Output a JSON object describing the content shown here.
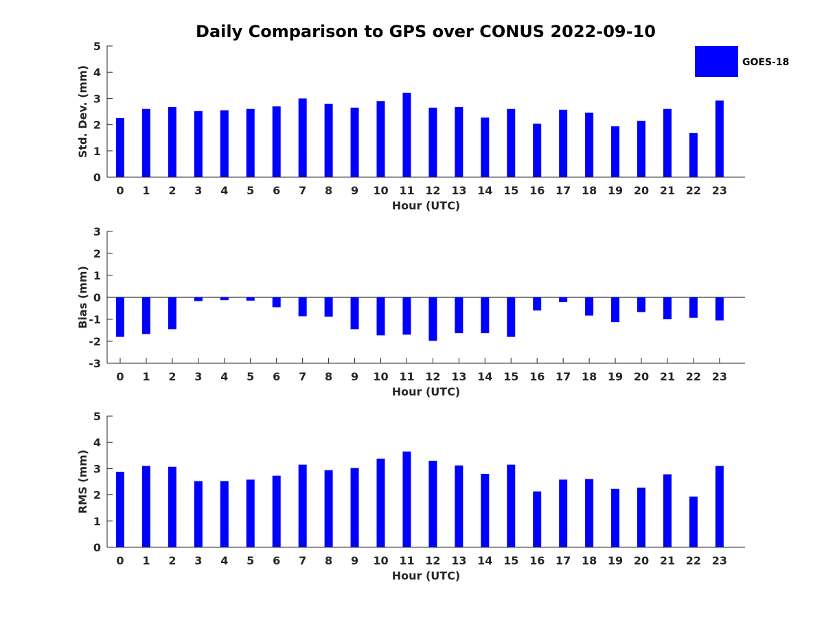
{
  "figure_title": "Daily Comparison to GPS over CONUS 2022-09-10",
  "legend": {
    "label": "GOES-18"
  },
  "colors": {
    "bar": "#0000ff",
    "axis": "#262626"
  },
  "chart_data": [
    {
      "type": "bar",
      "title": "",
      "xlabel": "Hour (UTC)",
      "ylabel": "Std. Dev. (mm)",
      "ylim": [
        0,
        5
      ],
      "yticks": [
        0,
        1,
        2,
        3,
        4,
        5
      ],
      "categories": [
        "0",
        "1",
        "2",
        "3",
        "4",
        "5",
        "6",
        "7",
        "8",
        "9",
        "10",
        "11",
        "12",
        "13",
        "14",
        "15",
        "16",
        "17",
        "18",
        "19",
        "20",
        "21",
        "22",
        "23"
      ],
      "series": [
        {
          "name": "GOES-18",
          "values": [
            2.25,
            2.6,
            2.67,
            2.52,
            2.55,
            2.6,
            2.7,
            3.0,
            2.8,
            2.65,
            2.9,
            3.22,
            2.65,
            2.67,
            2.27,
            2.6,
            2.04,
            2.57,
            2.46,
            1.94,
            2.15,
            2.6,
            1.68,
            2.92
          ]
        }
      ]
    },
    {
      "type": "bar",
      "title": "",
      "xlabel": "Hour (UTC)",
      "ylabel": "Bias (mm)",
      "ylim": [
        -3,
        3
      ],
      "yticks": [
        -3,
        -2,
        -1,
        0,
        1,
        2,
        3
      ],
      "categories": [
        "0",
        "1",
        "2",
        "3",
        "4",
        "5",
        "6",
        "7",
        "8",
        "9",
        "10",
        "11",
        "12",
        "13",
        "14",
        "15",
        "16",
        "17",
        "18",
        "19",
        "20",
        "21",
        "22",
        "23"
      ],
      "series": [
        {
          "name": "GOES-18",
          "values": [
            -1.8,
            -1.67,
            -1.45,
            -0.17,
            -0.13,
            -0.15,
            -0.45,
            -0.86,
            -0.88,
            -1.45,
            -1.73,
            -1.7,
            -1.98,
            -1.63,
            -1.63,
            -1.8,
            -0.6,
            -0.22,
            -0.83,
            -1.13,
            -0.67,
            -1.0,
            -0.93,
            -1.05
          ]
        }
      ]
    },
    {
      "type": "bar",
      "title": "",
      "xlabel": "Hour (UTC)",
      "ylabel": "RMS (mm)",
      "ylim": [
        0,
        5
      ],
      "yticks": [
        0,
        1,
        2,
        3,
        4,
        5
      ],
      "categories": [
        "0",
        "1",
        "2",
        "3",
        "4",
        "5",
        "6",
        "7",
        "8",
        "9",
        "10",
        "11",
        "12",
        "13",
        "14",
        "15",
        "16",
        "17",
        "18",
        "19",
        "20",
        "21",
        "22",
        "23"
      ],
      "series": [
        {
          "name": "GOES-18",
          "values": [
            2.88,
            3.1,
            3.07,
            2.52,
            2.52,
            2.58,
            2.73,
            3.15,
            2.94,
            3.02,
            3.38,
            3.65,
            3.3,
            3.12,
            2.8,
            3.15,
            2.13,
            2.58,
            2.6,
            2.23,
            2.27,
            2.78,
            1.93,
            3.1
          ]
        }
      ]
    }
  ]
}
